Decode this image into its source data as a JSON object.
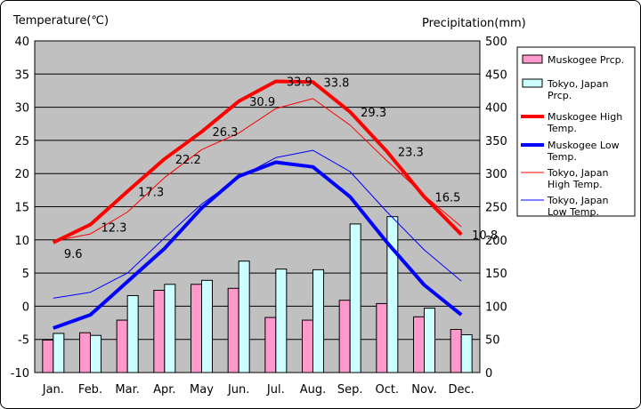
{
  "chart_data": {
    "type": "bar+line",
    "categories": [
      "Jan.",
      "Feb.",
      "Mar.",
      "Apr.",
      "May",
      "Jun.",
      "Jul.",
      "Aug.",
      "Sep.",
      "Oct.",
      "Nov.",
      "Dec."
    ],
    "left_axis": {
      "title": "Temperature(℃)",
      "range": [
        -10,
        40
      ],
      "ticks": [
        -10,
        -5,
        0,
        5,
        10,
        15,
        20,
        25,
        30,
        35,
        40
      ]
    },
    "right_axis": {
      "title": "Precipitation(mm)",
      "range": [
        0,
        500
      ],
      "ticks": [
        0,
        50,
        100,
        150,
        200,
        250,
        300,
        350,
        400,
        450,
        500
      ]
    },
    "bars": [
      {
        "name": "Muskogee Prcp.",
        "axis": "right",
        "color": "#ff99cc",
        "values": [
          49,
          60,
          79,
          124,
          133,
          127,
          83,
          79,
          109,
          104,
          84,
          65
        ]
      },
      {
        "name": "Tokyo, Japan Prcp.",
        "axis": "right",
        "color": "#ccffff",
        "values": [
          59,
          56,
          116,
          133,
          139,
          168,
          156,
          155,
          224,
          235,
          97,
          57
        ]
      }
    ],
    "lines": [
      {
        "name": "Muskogee High Temp.",
        "axis": "left",
        "color": "#ff0000",
        "width": 4,
        "values": [
          9.6,
          12.3,
          17.3,
          22.2,
          26.3,
          30.9,
          33.9,
          33.8,
          29.3,
          23.3,
          16.5,
          10.8
        ],
        "labels": [
          "9.6",
          "12.3",
          "17.3",
          "22.2",
          "26.3",
          "30.9",
          "33.9",
          "33.8",
          "29.3",
          "23.3",
          "16.5",
          "10.8"
        ]
      },
      {
        "name": "Muskogee Low Temp.",
        "axis": "left",
        "color": "#0000ff",
        "width": 4,
        "values": [
          -3.3,
          -1.3,
          3.7,
          8.7,
          14.8,
          19.6,
          21.7,
          21.0,
          16.5,
          9.6,
          3.2,
          -1.3
        ]
      },
      {
        "name": "Tokyo, Japan High Temp.",
        "axis": "left",
        "color": "#ff0000",
        "width": 1,
        "values": [
          9.8,
          10.9,
          14.2,
          19.4,
          23.6,
          26.1,
          29.8,
          31.3,
          27.3,
          21.9,
          16.7,
          12.0
        ]
      },
      {
        "name": "Tokyo, Japan Low Temp.",
        "axis": "left",
        "color": "#0000ff",
        "width": 1,
        "values": [
          1.2,
          2.1,
          5.0,
          10.3,
          15.4,
          19.4,
          22.4,
          23.5,
          20.3,
          14.2,
          8.5,
          3.8
        ]
      }
    ],
    "legend": {
      "position": "right",
      "entries": [
        {
          "kind": "bar",
          "color": "#ff99cc",
          "lines": [
            "Muskogee Prcp."
          ]
        },
        {
          "kind": "bar",
          "color": "#ccffff",
          "lines": [
            "Tokyo, Japan",
            "Prcp."
          ]
        },
        {
          "kind": "line",
          "color": "#ff0000",
          "width": 4,
          "lines": [
            "Muskogee High",
            "Temp."
          ]
        },
        {
          "kind": "line",
          "color": "#0000ff",
          "width": 4,
          "lines": [
            "Muskogee Low",
            "Temp."
          ]
        },
        {
          "kind": "line",
          "color": "#ff0000",
          "width": 1,
          "lines": [
            "Tokyo, Japan",
            "High Temp."
          ]
        },
        {
          "kind": "line",
          "color": "#0000ff",
          "width": 1,
          "lines": [
            "Tokyo, Japan",
            "Low Temp."
          ]
        }
      ]
    },
    "plot_background": "#c0c0c0",
    "grid": true
  }
}
